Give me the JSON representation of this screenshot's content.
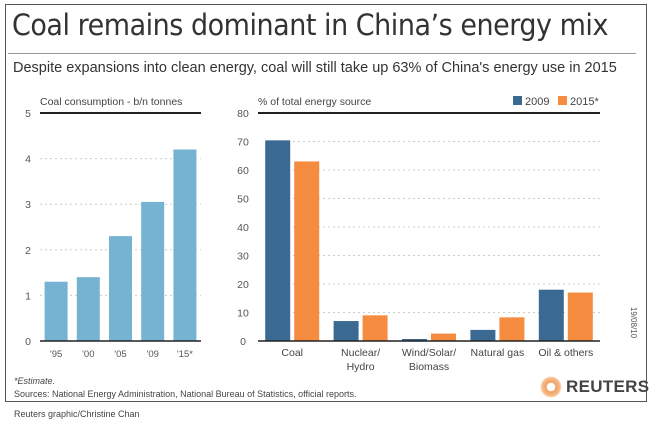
{
  "header": {
    "title": "Coal remains dominant in China’s energy mix",
    "subtitle": "Despite expansions into clean energy, coal will still take up 63% of China's energy use in 2015"
  },
  "chart_data": [
    {
      "type": "bar",
      "title": "Coal consumption - b/n tonnes",
      "xlabel": "",
      "ylabel": "",
      "categories": [
        "'95",
        "'00",
        "'05",
        "'09",
        "'15*"
      ],
      "values": [
        1.3,
        1.4,
        2.3,
        3.05,
        4.2
      ],
      "ylim": [
        0,
        5
      ],
      "yticks": [
        0,
        1,
        2,
        3,
        4,
        5
      ],
      "grid": true,
      "color": "#76b3d3"
    },
    {
      "type": "bar",
      "title": "% of total energy source",
      "xlabel": "",
      "ylabel": "",
      "categories": [
        "Coal",
        "Nuclear/\nHydro",
        "Wind/Solar/\nBiomass",
        "Natural gas",
        "Oil & others"
      ],
      "series": [
        {
          "name": "2009",
          "color": "#3a6a92",
          "values": [
            70.4,
            7,
            0.7,
            3.9,
            18
          ]
        },
        {
          "name": "2015*",
          "color": "#f58c3f",
          "values": [
            63,
            9,
            2.6,
            8.3,
            17
          ]
        }
      ],
      "ylim": [
        0,
        80
      ],
      "yticks": [
        0,
        10,
        20,
        30,
        40,
        50,
        60,
        70,
        80
      ],
      "grid": true,
      "legend": "top-right"
    }
  ],
  "footer": {
    "footnote": "*Estimate.",
    "sources": "Sources: National Energy Administration, National Bureau of Statistics, official reports.",
    "credit": "Reuters graphic/Christine Chan",
    "logo": "REUTERS",
    "datestamp": "19/08/10"
  }
}
